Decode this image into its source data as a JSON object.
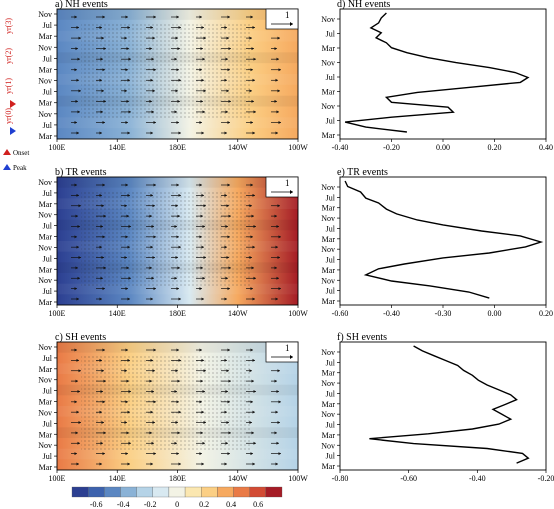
{
  "figure": {
    "panels": [
      {
        "id": "a",
        "title": "a)  NH events",
        "months": [
          "Nov",
          "Jul",
          "Mar",
          "Nov",
          "Jul",
          "Mar",
          "Nov",
          "Jul",
          "Mar",
          "Nov",
          "Jul",
          "Mar"
        ],
        "lons": [
          "100E",
          "140E",
          "180E",
          "140W",
          "100W"
        ],
        "vector_scale": "1"
      },
      {
        "id": "b",
        "title": "b)  TR events",
        "months": [
          "Nov",
          "Jul",
          "Mar",
          "Nov",
          "Jul",
          "Mar",
          "Nov",
          "Jul",
          "Mar",
          "Nov",
          "Jul",
          "Mar"
        ],
        "lons": [
          "100E",
          "140E",
          "180E",
          "140W",
          "100W"
        ],
        "vector_scale": "1"
      },
      {
        "id": "c",
        "title": "c)  SH events",
        "months": [
          "Nov",
          "Jul",
          "Mar",
          "Nov",
          "Jul",
          "Mar",
          "Nov",
          "Jul",
          "Mar",
          "Nov",
          "Jul",
          "Mar"
        ],
        "lons": [
          "100E",
          "140E",
          "180E",
          "140W",
          "100W"
        ],
        "vector_scale": "1"
      }
    ],
    "profiles": [
      {
        "id": "d",
        "title": "d)  NH events",
        "months": [
          "Nov",
          "Jul",
          "Mar",
          "Nov",
          "Jul",
          "Mar",
          "Nov",
          "Jul",
          "Mar"
        ],
        "xticks": [
          "-0.40",
          "-0.20",
          "0.00",
          "0.20",
          "0.40"
        ],
        "xlim": [
          -0.4,
          0.4
        ],
        "x": [
          -0.22,
          -0.24,
          -0.25,
          -0.28,
          -0.24,
          -0.26,
          -0.22,
          -0.2,
          -0.14,
          -0.06,
          0.05,
          0.18,
          0.28,
          0.33,
          0.3,
          0.1,
          -0.1,
          -0.22,
          -0.2,
          0.02,
          0.04,
          -0.2,
          -0.38,
          -0.3,
          -0.14
        ],
        "y": [
          0,
          0.04,
          0.08,
          0.12,
          0.16,
          0.2,
          0.24,
          0.28,
          0.32,
          0.36,
          0.4,
          0.44,
          0.48,
          0.52,
          0.56,
          0.6,
          0.64,
          0.68,
          0.72,
          0.76,
          0.8,
          0.84,
          0.88,
          0.92,
          0.96
        ]
      },
      {
        "id": "e",
        "title": "e)  TR events",
        "months": [
          "Nov",
          "Jul",
          "Mar",
          "Nov",
          "Jul",
          "Mar",
          "Nov",
          "Jul",
          "Mar",
          "Nov",
          "Jul",
          "Mar"
        ],
        "xticks": [
          "-0.60",
          "-0.40",
          "-0.30",
          "0.00",
          "0.20"
        ],
        "xlim": [
          -0.6,
          0.2
        ],
        "x": [
          -0.58,
          -0.57,
          -0.52,
          -0.5,
          -0.45,
          -0.42,
          -0.38,
          -0.3,
          -0.2,
          -0.05,
          0.1,
          0.18,
          0.12,
          -0.02,
          -0.2,
          -0.35,
          -0.45,
          -0.5,
          -0.4,
          -0.25,
          -0.1,
          -0.02
        ],
        "y": [
          0,
          0.045,
          0.09,
          0.14,
          0.18,
          0.23,
          0.27,
          0.32,
          0.36,
          0.41,
          0.45,
          0.5,
          0.54,
          0.59,
          0.63,
          0.68,
          0.72,
          0.77,
          0.82,
          0.86,
          0.91,
          0.96
        ]
      },
      {
        "id": "f",
        "title": "f)  SH events",
        "months": [
          "Nov",
          "Jul",
          "Mar",
          "Nov",
          "Jul",
          "Mar",
          "Nov",
          "Jul",
          "Mar",
          "Nov",
          "Jul",
          "Mar"
        ],
        "xticks": [
          "-0.80",
          "-0.60",
          "-0.40",
          "-0.20"
        ],
        "xlim": [
          -0.8,
          -0.1
        ],
        "x": [
          -0.55,
          -0.52,
          -0.48,
          -0.44,
          -0.4,
          -0.38,
          -0.35,
          -0.33,
          -0.3,
          -0.26,
          -0.22,
          -0.2,
          -0.24,
          -0.28,
          -0.25,
          -0.22,
          -0.26,
          -0.35,
          -0.5,
          -0.7,
          -0.55,
          -0.3,
          -0.18,
          -0.16,
          -0.2
        ],
        "y": [
          0,
          0.04,
          0.08,
          0.12,
          0.16,
          0.2,
          0.24,
          0.28,
          0.32,
          0.36,
          0.4,
          0.44,
          0.48,
          0.52,
          0.56,
          0.6,
          0.64,
          0.68,
          0.72,
          0.76,
          0.8,
          0.84,
          0.88,
          0.92,
          0.96
        ]
      }
    ],
    "year_labels": [
      "yr(0)",
      "yr(1)",
      "yr(2)",
      "yr(3)"
    ],
    "legend": {
      "onset": "Onset",
      "peak": "Peak"
    },
    "colorbar": {
      "ticks": [
        "-0.6",
        "-0.4",
        "-0.2",
        "0",
        "0.2",
        "0.4",
        "0.6"
      ],
      "colors": [
        "#2c3f91",
        "#3d62ad",
        "#5b87c2",
        "#8ab2d6",
        "#b5d3e7",
        "#d8e9f1",
        "#f3f3e5",
        "#fbe7b0",
        "#fbcf84",
        "#f6a95f",
        "#e97a46",
        "#d24b34",
        "#a51c26"
      ]
    }
  }
}
